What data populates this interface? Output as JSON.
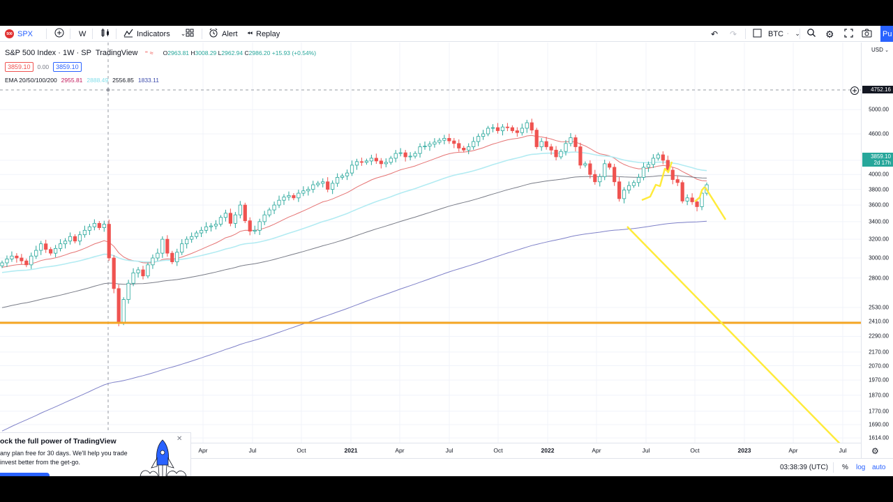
{
  "toolbar": {
    "symbol": "SPX",
    "interval": "W",
    "indicators_label": "Indicators",
    "alert_label": "Alert",
    "replay_label": "Replay",
    "compare_symbol": "BTC",
    "publish_label": "Pu"
  },
  "legend": {
    "title": "S&P 500 Index · 1W · SP",
    "source": "TradingView",
    "ohlc": {
      "o_label": "O",
      "o": "2963.81",
      "h_label": "H",
      "h": "3008.29",
      "l_label": "L",
      "l": "2962.94",
      "c_label": "C",
      "c": "2986.20",
      "change": "+15.93 (+0.54%)"
    },
    "bid": "3859.10",
    "spread": "0.00",
    "ask": "3859.10",
    "ema_label": "EMA 20/50/100/200",
    "ema_values": [
      "2955.81",
      "2888.49",
      "2556.85",
      "1833.11"
    ],
    "ema_colors": [
      "#c2185b",
      "#b2ebf2",
      "#131722",
      "#3949ab"
    ]
  },
  "price_axis": {
    "currency": "USD",
    "ticks": [
      "5000.00",
      "4600.00",
      "4200.00",
      "4000.00",
      "3800.00",
      "3600.00",
      "3400.00",
      "3200.00",
      "3000.00",
      "2800.00",
      "2530.00",
      "2410.00",
      "2290.00",
      "2170.00",
      "2070.00",
      "1970.00",
      "1870.00",
      "1770.00",
      "1690.00",
      "1614.00"
    ],
    "crosshair_price": "4752.16",
    "last_price": "3859.10",
    "countdown": "2d 17h"
  },
  "time_axis": {
    "labels": [
      "Apr",
      "Jul",
      "Oct",
      "2021",
      "Apr",
      "Jul",
      "Oct",
      "2022",
      "Apr",
      "Jul",
      "Oct",
      "2023",
      "Apr",
      "Jul"
    ]
  },
  "status": {
    "time": "03:38:39 (UTC)",
    "percent": "%",
    "log": "log",
    "auto": "auto"
  },
  "promo": {
    "title": "ock the full power of TradingView",
    "body_line1": "any plan free for 30 days. We'll help you trade",
    "body_line2": "invest better from the get-go."
  },
  "colors": {
    "accent": "#2962ff",
    "up": "#26a69a",
    "down": "#ef5350",
    "ema20": "#e57373",
    "ema50": "#b2ebf2",
    "ema100": "#787b86",
    "ema200": "#7e80c8",
    "hline": "#f5a623",
    "drawing": "#ffeb3b"
  },
  "chart_data": {
    "type": "candlestick",
    "interval": "1W",
    "note_series": "approximate weekly closes",
    "closes": [
      2950,
      2990,
      3020,
      3000,
      2970,
      2930,
      3020,
      3080,
      3150,
      3090,
      3050,
      3100,
      3150,
      3180,
      3230,
      3180,
      3250,
      3300,
      3340,
      3380,
      3330,
      3370,
      3000,
      2700,
      2400,
      2600,
      2750,
      2850,
      2880,
      2820,
      2930,
      3000,
      3050,
      3200,
      3050,
      2960,
      3060,
      3150,
      3200,
      3230,
      3270,
      3300,
      3340,
      3350,
      3370,
      3450,
      3500,
      3380,
      3480,
      3600,
      3410,
      3290,
      3300,
      3400,
      3480,
      3540,
      3600,
      3660,
      3700,
      3720,
      3690,
      3750,
      3780,
      3800,
      3860,
      3880,
      3900,
      3800,
      3880,
      3960,
      3980,
      4020,
      4130,
      4180,
      4170,
      4190,
      4230,
      4190,
      4150,
      4170,
      4230,
      4300,
      4310,
      4250,
      4260,
      4300,
      4400,
      4410,
      4440,
      4470,
      4500,
      4530,
      4490,
      4450,
      4380,
      4350,
      4400,
      4480,
      4560,
      4600,
      4690,
      4700,
      4650,
      4710,
      4700,
      4650,
      4620,
      4690,
      4780,
      4660,
      4400,
      4480,
      4400,
      4350,
      4250,
      4330,
      4450,
      4540,
      4400,
      4130,
      4150,
      4000,
      3900,
      3970,
      4150,
      4100,
      3900,
      3680,
      3790,
      3850,
      3890,
      3960,
      4100,
      4140,
      4230,
      4280,
      4200,
      4060,
      3930,
      3890,
      3650,
      3690,
      3640,
      3580,
      3750,
      3860
    ]
  }
}
